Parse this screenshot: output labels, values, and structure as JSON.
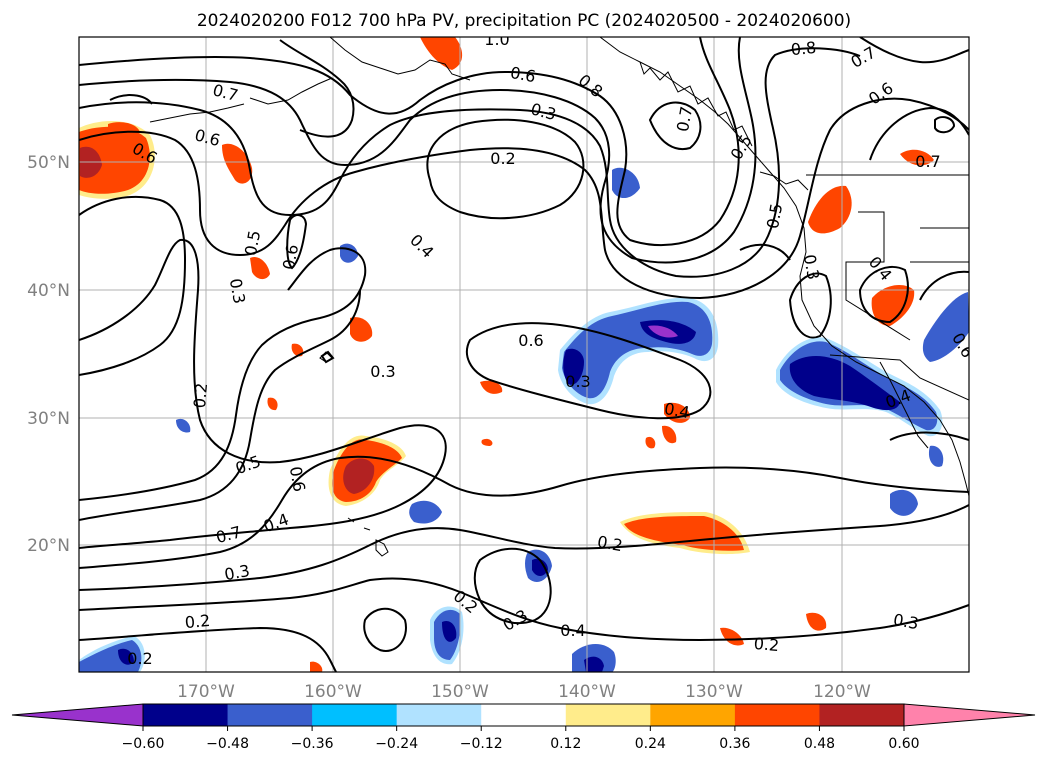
{
  "title": "2024020200 F012 700 hPa PV, precipitation PC (2024020500 - 2024020600)",
  "lat_labels": [
    "50°N",
    "40°N",
    "30°N",
    "20°N"
  ],
  "lon_labels": [
    "170°W",
    "160°W",
    "150°W",
    "140°W",
    "130°W",
    "120°W"
  ],
  "colorbar": {
    "colors": [
      "#9932cc",
      "#00008b",
      "#3a5fcd",
      "#00bfff",
      "#b0e2ff",
      "#ffffff",
      "#ffec8b",
      "#ffa500",
      "#ff4500",
      "#b22222",
      "#ff82ab"
    ],
    "ticks": [
      "−0.60",
      "−0.48",
      "−0.36",
      "−0.24",
      "−0.12",
      "0.12",
      "0.24",
      "0.36",
      "0.48",
      "0.60"
    ]
  },
  "contour_labels": [
    "1.0",
    "0.8",
    "0.7",
    "0.6",
    "0.8",
    "0.6",
    "0.3",
    "0.7",
    "0.6",
    "0.6",
    "0.2",
    "0.4",
    "0.5",
    "0.6",
    "0.3",
    "0.5",
    "0.3",
    "0.4",
    "0.7",
    "0.6",
    "0.3",
    "0.2",
    "0.3",
    "0.4",
    "0.5",
    "0.6",
    "0.7",
    "0.4",
    "0.3",
    "0.2",
    "0.2",
    "0.3",
    "0.4",
    "0.2",
    "0.2",
    "0.3",
    "0.6",
    "0.7",
    "0.2",
    "0.5",
    "0.4"
  ]
}
